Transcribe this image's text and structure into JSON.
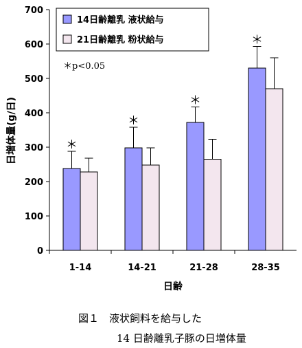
{
  "chart_data": {
    "type": "bar",
    "xlabel": "日齢",
    "ylabel": "日増体量(g/日)",
    "categories": [
      "1-14",
      "14-21",
      "21-28",
      "28-35"
    ],
    "ylim": [
      0,
      700
    ],
    "yticks": [
      0,
      100,
      200,
      300,
      400,
      500,
      600,
      700
    ],
    "grid": false,
    "legend_position": "top-left",
    "series": [
      {
        "name": "14日齢離乳 液状給与",
        "color": "#9999ff",
        "values": [
          238,
          298,
          372,
          530
        ],
        "errors": [
          50,
          60,
          45,
          63
        ]
      },
      {
        "name": "21日齢離乳 粉状給与",
        "color": "#f3e6ee",
        "values": [
          228,
          248,
          265,
          470
        ],
        "errors": [
          40,
          50,
          58,
          90
        ]
      }
    ],
    "significance_marker": "＊",
    "significant_categories": [
      1,
      2,
      3,
      4
    ],
    "annotation": "＊p<0.05"
  },
  "caption": {
    "line1": "図１　液状飼料を給与した",
    "line2": "14 日齢離乳子豚の日増体量"
  }
}
